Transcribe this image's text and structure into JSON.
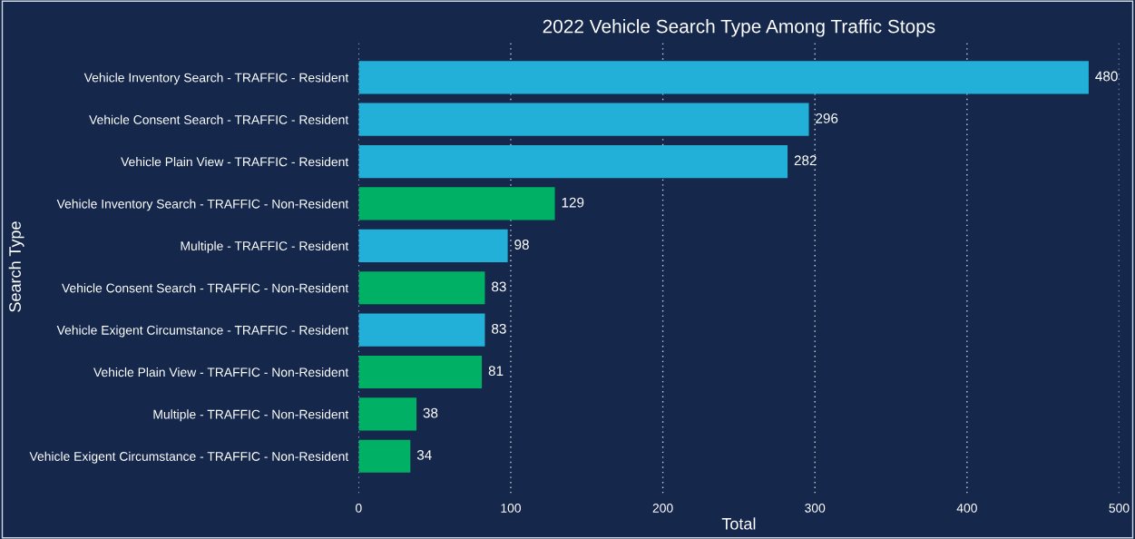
{
  "chart_data": {
    "type": "bar",
    "orientation": "horizontal",
    "title": "2022 Vehicle Search Type Among Traffic Stops",
    "xlabel": "Total",
    "ylabel": "Search Type",
    "categories": [
      "Vehicle Inventory Search - TRAFFIC - Resident",
      "Vehicle Consent Search - TRAFFIC - Resident",
      "Vehicle Plain View - TRAFFIC - Resident",
      "Vehicle Inventory Search - TRAFFIC - Non-Resident",
      "Multiple - TRAFFIC - Resident",
      "Vehicle Consent Search - TRAFFIC - Non-Resident",
      "Vehicle Exigent Circumstance - TRAFFIC - Resident",
      "Vehicle Plain View - TRAFFIC - Non-Resident",
      "Multiple - TRAFFIC - Non-Resident",
      "Vehicle Exigent Circumstance - TRAFFIC - Non-Resident"
    ],
    "values": [
      480,
      296,
      282,
      129,
      98,
      83,
      83,
      81,
      38,
      34
    ],
    "colors": [
      "#22b0d8",
      "#22b0d8",
      "#22b0d8",
      "#00b065",
      "#22b0d8",
      "#00b065",
      "#22b0d8",
      "#00b065",
      "#00b065",
      "#00b065"
    ],
    "xlim": [
      0,
      500
    ],
    "xticks": [
      0,
      100,
      200,
      300,
      400,
      500
    ],
    "grid": "x",
    "data_labels": true
  }
}
